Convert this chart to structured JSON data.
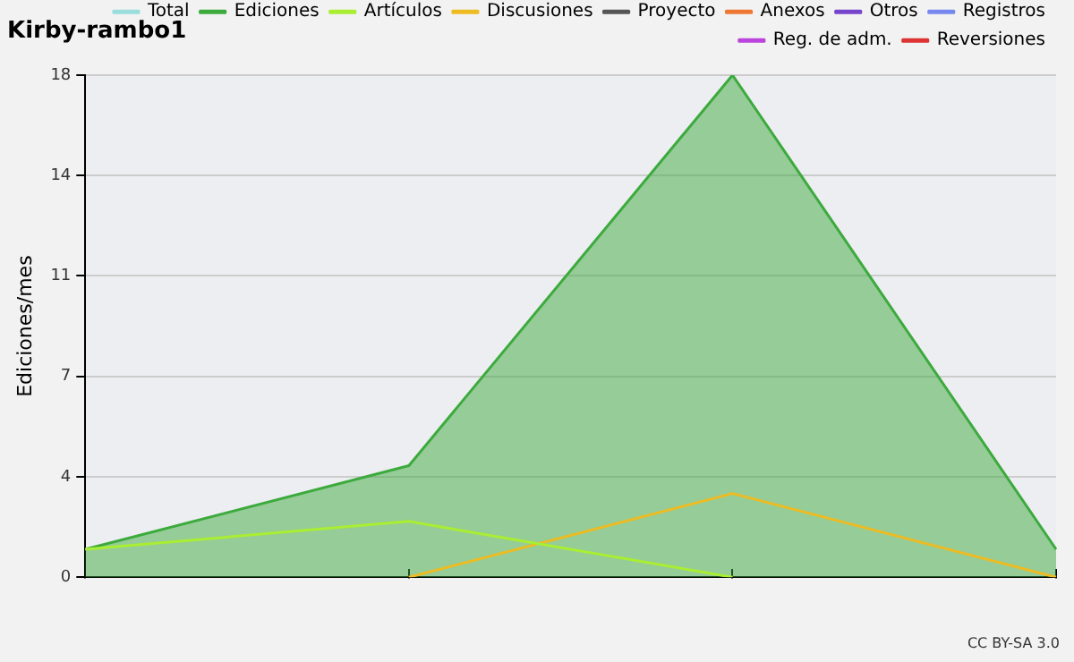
{
  "chart_data": {
    "type": "line",
    "title": "Kirby-rambo1",
    "ylabel": "Ediciones/mes",
    "categories": [
      null,
      null,
      null,
      null
    ],
    "series": [
      {
        "name": "Total",
        "color": "#99dddd",
        "values": [
          null,
          null,
          null,
          null
        ]
      },
      {
        "name": "Ediciones",
        "color": "#3daa3d",
        "type": "area",
        "values": [
          1,
          4,
          18,
          1
        ]
      },
      {
        "name": "Artículos",
        "color": "#aaee33",
        "values": [
          1,
          2,
          0,
          null
        ]
      },
      {
        "name": "Discusiones",
        "color": "#eebb22",
        "values": [
          null,
          0,
          3,
          0
        ]
      },
      {
        "name": "Proyecto",
        "color": "#555555",
        "values": [
          null,
          null,
          null,
          null
        ]
      },
      {
        "name": "Anexos",
        "color": "#ee7733",
        "values": [
          null,
          null,
          null,
          null
        ]
      },
      {
        "name": "Otros",
        "color": "#7744cc",
        "values": [
          null,
          null,
          null,
          null
        ]
      },
      {
        "name": "Registros",
        "color": "#7788ee",
        "values": [
          null,
          null,
          null,
          null
        ]
      },
      {
        "name": "Reg. de adm.",
        "color": "#bb44dd",
        "values": [
          null,
          null,
          null,
          null
        ]
      },
      {
        "name": "Reversiones",
        "color": "#dd3333",
        "values": [
          null,
          null,
          null,
          null
        ]
      }
    ],
    "ylim": [
      0,
      18
    ],
    "yticks": [
      0,
      {
        "value": 3.6,
        "label": "4"
      },
      {
        "value": 7.2,
        "label": "7"
      },
      {
        "value": 10.8,
        "label": "11"
      },
      {
        "value": 14.4,
        "label": "14"
      },
      18
    ],
    "grid": "y",
    "legend": "top right",
    "marker": "none",
    "line_style": "solid",
    "annotations": [
      "CC BY-SA 3.0"
    ]
  }
}
